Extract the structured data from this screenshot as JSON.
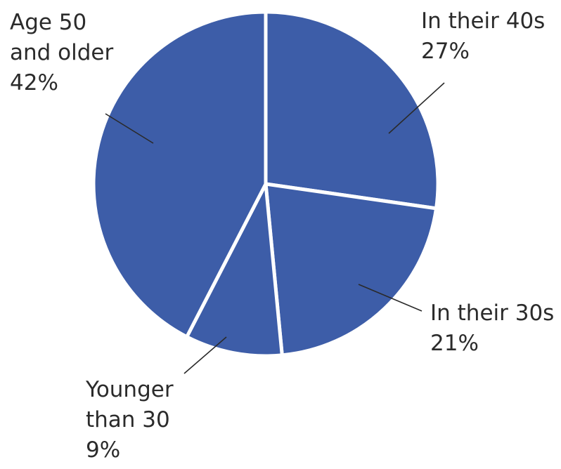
{
  "chart_data": {
    "type": "pie",
    "title": "",
    "slice_color": "#3d5da8",
    "background": "#ffffff",
    "slices": [
      {
        "name": "In their 40s",
        "value": 27,
        "value_label": "27%",
        "label_lines": [
          "In their 40s"
        ]
      },
      {
        "name": "In their 30s",
        "value": 21,
        "value_label": "21%",
        "label_lines": [
          "In their 30s"
        ]
      },
      {
        "name": "Younger than 30",
        "value": 9,
        "value_label": "9%",
        "label_lines": [
          "Younger",
          "than 30"
        ]
      },
      {
        "name": "Age 50 and older",
        "value": 42,
        "value_label": "42%",
        "label_lines": [
          "Age 50",
          "and older"
        ]
      }
    ],
    "start_angle": "top",
    "direction": "clockwise",
    "legend": "none",
    "labels": "outside with leader lines"
  }
}
